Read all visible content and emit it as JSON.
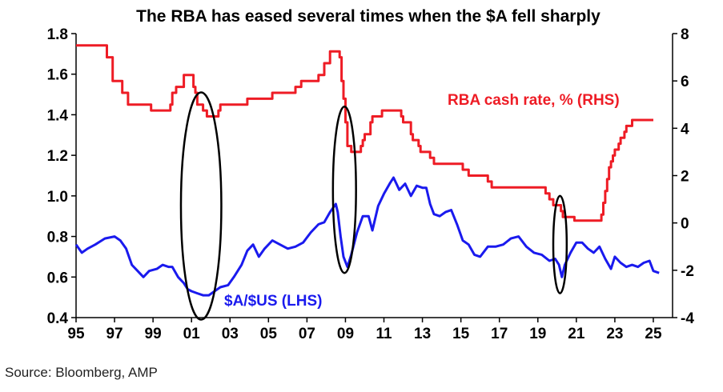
{
  "chart_data": {
    "type": "line",
    "title": "The RBA has eased several times when the $A fell sharply",
    "source": "Source: Bloomberg, AMP",
    "x_tick_labels": [
      "95",
      "97",
      "99",
      "01",
      "03",
      "05",
      "07",
      "09",
      "11",
      "13",
      "15",
      "17",
      "19",
      "21",
      "23",
      "25"
    ],
    "x_tick_years": [
      1995,
      1997,
      1999,
      2001,
      2003,
      2005,
      2007,
      2009,
      2011,
      2013,
      2015,
      2017,
      2019,
      2021,
      2023,
      2025
    ],
    "xlim": [
      1995,
      2026
    ],
    "y_left": {
      "lim": [
        0.4,
        1.8
      ],
      "ticks": [
        "0.4",
        "0.6",
        "0.8",
        "1.0",
        "1.2",
        "1.4",
        "1.6",
        "1.8"
      ]
    },
    "y_right": {
      "lim": [
        -4,
        8
      ],
      "ticks": [
        "-4",
        "-2",
        "0",
        "2",
        "4",
        "6",
        "8"
      ]
    },
    "colors": {
      "rba": "#ee1c25",
      "aud": "#1a1aee",
      "ellipse": "#000000",
      "axis": "#000000"
    },
    "series": [
      {
        "name": "RBA cash rate, % (RHS)",
        "axis": "right",
        "color": "#ee1c25",
        "step": true,
        "points": [
          [
            1995.0,
            7.5
          ],
          [
            1996.6,
            7.0
          ],
          [
            1996.9,
            6.0
          ],
          [
            1997.4,
            5.5
          ],
          [
            1997.7,
            5.0
          ],
          [
            1998.9,
            4.75
          ],
          [
            1999.9,
            5.0
          ],
          [
            2000.0,
            5.5
          ],
          [
            2000.2,
            5.75
          ],
          [
            2000.6,
            6.25
          ],
          [
            2001.1,
            5.75
          ],
          [
            2001.2,
            5.5
          ],
          [
            2001.3,
            5.0
          ],
          [
            2001.6,
            4.75
          ],
          [
            2001.8,
            4.5
          ],
          [
            2002.4,
            4.75
          ],
          [
            2002.5,
            5.0
          ],
          [
            2003.9,
            5.25
          ],
          [
            2004.0,
            5.25
          ],
          [
            2005.2,
            5.5
          ],
          [
            2006.4,
            5.75
          ],
          [
            2006.7,
            6.0
          ],
          [
            2007.6,
            6.25
          ],
          [
            2007.9,
            6.75
          ],
          [
            2008.2,
            7.25
          ],
          [
            2008.7,
            7.0
          ],
          [
            2008.8,
            6.0
          ],
          [
            2008.9,
            5.25
          ],
          [
            2009.0,
            4.25
          ],
          [
            2009.1,
            3.25
          ],
          [
            2009.3,
            3.0
          ],
          [
            2009.8,
            3.25
          ],
          [
            2009.9,
            3.5
          ],
          [
            2010.0,
            3.75
          ],
          [
            2010.3,
            4.25
          ],
          [
            2010.4,
            4.5
          ],
          [
            2010.9,
            4.75
          ],
          [
            2011.9,
            4.5
          ],
          [
            2012.0,
            4.25
          ],
          [
            2012.4,
            3.75
          ],
          [
            2012.5,
            3.5
          ],
          [
            2012.8,
            3.25
          ],
          [
            2012.9,
            3.0
          ],
          [
            2013.4,
            2.75
          ],
          [
            2013.6,
            2.5
          ],
          [
            2015.1,
            2.25
          ],
          [
            2015.4,
            2.0
          ],
          [
            2016.4,
            1.75
          ],
          [
            2016.6,
            1.5
          ],
          [
            2019.4,
            1.25
          ],
          [
            2019.6,
            1.0
          ],
          [
            2019.8,
            0.75
          ],
          [
            2020.2,
            0.5
          ],
          [
            2020.3,
            0.25
          ],
          [
            2020.9,
            0.1
          ],
          [
            2022.3,
            0.35
          ],
          [
            2022.4,
            0.85
          ],
          [
            2022.5,
            1.35
          ],
          [
            2022.6,
            1.85
          ],
          [
            2022.7,
            2.35
          ],
          [
            2022.8,
            2.6
          ],
          [
            2022.9,
            2.85
          ],
          [
            2023.0,
            3.1
          ],
          [
            2023.2,
            3.35
          ],
          [
            2023.3,
            3.6
          ],
          [
            2023.5,
            3.85
          ],
          [
            2023.6,
            4.1
          ],
          [
            2023.9,
            4.35
          ],
          [
            2025.0,
            4.35
          ]
        ]
      },
      {
        "name": "$A/$US (LHS)",
        "axis": "left",
        "color": "#1a1aee",
        "step": false,
        "points": [
          [
            1995.0,
            0.76
          ],
          [
            1995.3,
            0.72
          ],
          [
            1995.6,
            0.74
          ],
          [
            1996.0,
            0.76
          ],
          [
            1996.5,
            0.79
          ],
          [
            1997.0,
            0.8
          ],
          [
            1997.3,
            0.78
          ],
          [
            1997.6,
            0.74
          ],
          [
            1997.9,
            0.66
          ],
          [
            1998.2,
            0.63
          ],
          [
            1998.5,
            0.6
          ],
          [
            1998.8,
            0.63
          ],
          [
            1999.2,
            0.64
          ],
          [
            1999.5,
            0.66
          ],
          [
            1999.8,
            0.65
          ],
          [
            2000.0,
            0.65
          ],
          [
            2000.3,
            0.6
          ],
          [
            2000.6,
            0.57
          ],
          [
            2000.8,
            0.54
          ],
          [
            2001.0,
            0.53
          ],
          [
            2001.3,
            0.52
          ],
          [
            2001.6,
            0.51
          ],
          [
            2001.9,
            0.51
          ],
          [
            2002.2,
            0.53
          ],
          [
            2002.5,
            0.55
          ],
          [
            2002.9,
            0.56
          ],
          [
            2003.2,
            0.6
          ],
          [
            2003.6,
            0.66
          ],
          [
            2003.9,
            0.73
          ],
          [
            2004.2,
            0.76
          ],
          [
            2004.5,
            0.7
          ],
          [
            2004.8,
            0.74
          ],
          [
            2005.2,
            0.78
          ],
          [
            2005.6,
            0.76
          ],
          [
            2006.0,
            0.74
          ],
          [
            2006.4,
            0.75
          ],
          [
            2006.8,
            0.77
          ],
          [
            2007.2,
            0.82
          ],
          [
            2007.6,
            0.86
          ],
          [
            2007.9,
            0.87
          ],
          [
            2008.2,
            0.92
          ],
          [
            2008.5,
            0.96
          ],
          [
            2008.6,
            0.92
          ],
          [
            2008.75,
            0.8
          ],
          [
            2008.9,
            0.7
          ],
          [
            2009.1,
            0.65
          ],
          [
            2009.3,
            0.71
          ],
          [
            2009.6,
            0.82
          ],
          [
            2009.9,
            0.9
          ],
          [
            2010.2,
            0.9
          ],
          [
            2010.4,
            0.83
          ],
          [
            2010.7,
            0.95
          ],
          [
            2011.0,
            1.01
          ],
          [
            2011.3,
            1.06
          ],
          [
            2011.5,
            1.09
          ],
          [
            2011.8,
            1.03
          ],
          [
            2012.1,
            1.06
          ],
          [
            2012.4,
            1.0
          ],
          [
            2012.7,
            1.05
          ],
          [
            2013.0,
            1.04
          ],
          [
            2013.2,
            1.04
          ],
          [
            2013.4,
            0.96
          ],
          [
            2013.6,
            0.91
          ],
          [
            2013.9,
            0.9
          ],
          [
            2014.2,
            0.92
          ],
          [
            2014.5,
            0.93
          ],
          [
            2014.8,
            0.86
          ],
          [
            2015.1,
            0.78
          ],
          [
            2015.4,
            0.76
          ],
          [
            2015.7,
            0.71
          ],
          [
            2016.0,
            0.7
          ],
          [
            2016.4,
            0.75
          ],
          [
            2016.8,
            0.75
          ],
          [
            2017.2,
            0.76
          ],
          [
            2017.6,
            0.79
          ],
          [
            2018.0,
            0.8
          ],
          [
            2018.4,
            0.75
          ],
          [
            2018.8,
            0.72
          ],
          [
            2019.2,
            0.71
          ],
          [
            2019.6,
            0.68
          ],
          [
            2019.9,
            0.69
          ],
          [
            2020.1,
            0.66
          ],
          [
            2020.25,
            0.6
          ],
          [
            2020.4,
            0.66
          ],
          [
            2020.7,
            0.72
          ],
          [
            2021.0,
            0.77
          ],
          [
            2021.3,
            0.77
          ],
          [
            2021.6,
            0.74
          ],
          [
            2021.9,
            0.72
          ],
          [
            2022.2,
            0.75
          ],
          [
            2022.5,
            0.69
          ],
          [
            2022.8,
            0.64
          ],
          [
            2023.0,
            0.7
          ],
          [
            2023.3,
            0.67
          ],
          [
            2023.6,
            0.65
          ],
          [
            2023.9,
            0.66
          ],
          [
            2024.2,
            0.65
          ],
          [
            2024.5,
            0.67
          ],
          [
            2024.8,
            0.68
          ],
          [
            2025.0,
            0.63
          ],
          [
            2025.3,
            0.62
          ]
        ]
      }
    ],
    "ellipses": [
      {
        "cx": 2001.5,
        "cy_left": 0.95,
        "rx_years": 1.05,
        "ry_left": 0.56
      },
      {
        "cx": 2008.95,
        "cy_left": 1.03,
        "rx_years": 0.6,
        "ry_left": 0.41
      },
      {
        "cx": 2020.15,
        "cy_left": 0.76,
        "rx_years": 0.35,
        "ry_left": 0.24
      }
    ],
    "legend": "inline-labels",
    "grid": false
  }
}
